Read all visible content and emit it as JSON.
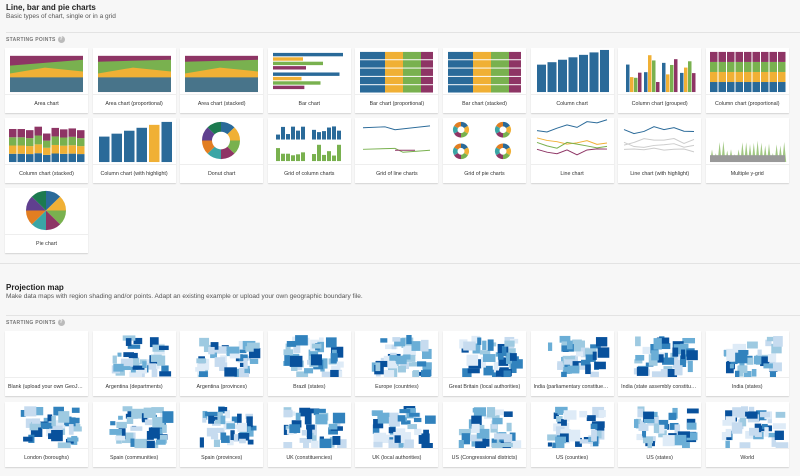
{
  "charts": {
    "title": "Line, bar and pie charts",
    "subtitle": "Basic types of chart, single or in a grid",
    "starting_points": "STARTING POINTS",
    "help": "?",
    "items": [
      {
        "label": "Area chart",
        "thumb": "area"
      },
      {
        "label": "Area chart (proportional)",
        "thumb": "areaprop"
      },
      {
        "label": "Area chart (stacked)",
        "thumb": "areastack"
      },
      {
        "label": "Bar chart",
        "thumb": "bar"
      },
      {
        "label": "Bar chart (proportional)",
        "thumb": "barprop"
      },
      {
        "label": "Bar chart (stacked)",
        "thumb": "barstack"
      },
      {
        "label": "Column chart",
        "thumb": "column"
      },
      {
        "label": "Column chart (grouped)",
        "thumb": "colgroup"
      },
      {
        "label": "Column chart (proportional)",
        "thumb": "colprop"
      },
      {
        "label": "Column chart (stacked)",
        "thumb": "colstack"
      },
      {
        "label": "Column chart (with highlight)",
        "thumb": "colhl"
      },
      {
        "label": "Donut chart",
        "thumb": "donut"
      },
      {
        "label": "Grid of column charts",
        "thumb": "gridcol"
      },
      {
        "label": "Grid of line charts",
        "thumb": "gridline"
      },
      {
        "label": "Grid of pie charts",
        "thumb": "gridpie"
      },
      {
        "label": "Line chart",
        "thumb": "line"
      },
      {
        "label": "Line chart (with highlight)",
        "thumb": "linehl"
      },
      {
        "label": "Multiple y-grid",
        "thumb": "multi"
      },
      {
        "label": "Pie chart",
        "thumb": "pie"
      }
    ]
  },
  "maps": {
    "title": "Projection map",
    "subtitle": "Make data maps with region shading and/or points. Adapt an existing example or upload your own geographic boundary file.",
    "starting_points": "STARTING POINTS",
    "help": "?",
    "items": [
      {
        "label": "Blank (upload your own GeoJSON)",
        "thumb": "blank"
      },
      {
        "label": "Argentina (departments)",
        "thumb": "map"
      },
      {
        "label": "Argentina (provinces)",
        "thumb": "map"
      },
      {
        "label": "Brazil (states)",
        "thumb": "map"
      },
      {
        "label": "Europe (countries)",
        "thumb": "map"
      },
      {
        "label": "Great Britain (local authorities)",
        "thumb": "map"
      },
      {
        "label": "India (parliamentary constituencies)",
        "thumb": "map"
      },
      {
        "label": "India (state assembly constituencies)",
        "thumb": "map"
      },
      {
        "label": "India (states)",
        "thumb": "map"
      },
      {
        "label": "London (boroughs)",
        "thumb": "map"
      },
      {
        "label": "Spain (communities)",
        "thumb": "map"
      },
      {
        "label": "Spain (provinces)",
        "thumb": "map"
      },
      {
        "label": "UK (constituencies)",
        "thumb": "map"
      },
      {
        "label": "UK (local authorities)",
        "thumb": "map"
      },
      {
        "label": "US (Congressional districts)",
        "thumb": "map"
      },
      {
        "label": "US (counties)",
        "thumb": "map"
      },
      {
        "label": "US (states)",
        "thumb": "map"
      },
      {
        "label": "World",
        "thumb": "map"
      }
    ]
  },
  "colors": [
    "#2a6a99",
    "#f0b035",
    "#79b14f",
    "#8e3565",
    "#3aa5a5",
    "#e27e22",
    "#60408f",
    "#1c7a4f"
  ]
}
